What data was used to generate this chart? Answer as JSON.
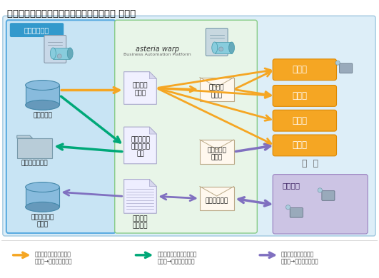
{
  "title": "生活協同組合連合会コープきんき事業連合 構成図",
  "title_fontsize": 9.5,
  "bg_color": "#ffffff",
  "main_bg": "#ddeef8",
  "inner_system_bg": "#c8e4f4",
  "inner_system_label": "内部システム",
  "asteria_bg": "#e8f5e8",
  "torihikisaki_bg": "#f5a623",
  "kaiin_bg": "#ccc4e4",
  "orange": "#f5a623",
  "green": "#00a878",
  "purple": "#8070c0",
  "legend_items": [
    {
      "label": "アバウトお知らせメール\n（社内→社外への処理）",
      "color": "#f5a623"
    },
    {
      "label": "社内確認用発注データ作成\n（社内→社内への処理）",
      "color": "#00a878"
    },
    {
      "label": "苦情・問い合わせ処理\n（社外→社内への処理）",
      "color": "#8070c0"
    }
  ],
  "torihiki_labels": [
    "取引先",
    "取引先",
    "取引先",
    "取引先"
  ],
  "kaiin_label": "会員生協",
  "naibu_label": "内部システム",
  "doc_labels": [
    "発注予定\nデータ",
    "現時点での\n発注データ\n作成",
    "メールの\n採番管理"
  ],
  "mail_labels": [
    "発注予定\nメール",
    "照合せ対応\nメール",
    "問合せメール"
  ],
  "left_labels": [
    "発注データ",
    "作業用フォルダ",
    "苦情・問合せ\nデータ"
  ]
}
